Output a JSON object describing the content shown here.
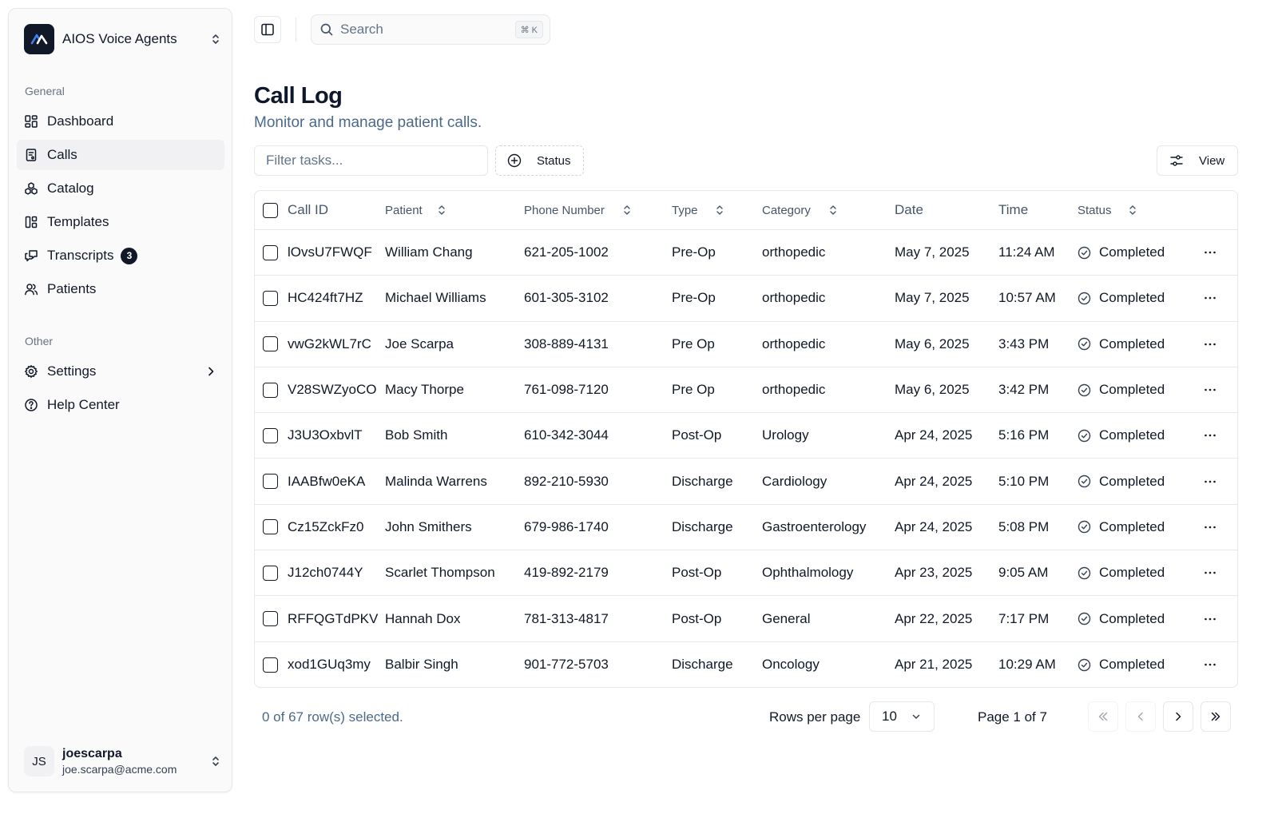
{
  "sidebar": {
    "brand": {
      "name": "AIOS Voice Agents"
    },
    "sections": {
      "general": "General",
      "other": "Other"
    },
    "items": [
      {
        "label": "Dashboard",
        "icon": "dashboard-icon"
      },
      {
        "label": "Calls",
        "icon": "calls-icon",
        "active": true
      },
      {
        "label": "Catalog",
        "icon": "catalog-icon"
      },
      {
        "label": "Templates",
        "icon": "templates-icon"
      },
      {
        "label": "Transcripts",
        "icon": "transcripts-icon",
        "badge": "3"
      },
      {
        "label": "Patients",
        "icon": "patients-icon"
      }
    ],
    "other_items": [
      {
        "label": "Settings",
        "icon": "gear-icon"
      },
      {
        "label": "Help Center",
        "icon": "help-icon"
      }
    ],
    "user": {
      "initials": "JS",
      "name": "joescarpa",
      "email": "joe.scarpa@acme.com"
    }
  },
  "topbar": {
    "search_label": "Search",
    "shortcut": "⌘ K"
  },
  "page": {
    "title": "Call Log",
    "subtitle": "Monitor and manage patient calls."
  },
  "toolbar": {
    "filter_placeholder": "Filter tasks...",
    "status_label": "Status",
    "view_label": "View"
  },
  "table": {
    "columns": {
      "call_id": "Call ID",
      "patient": "Patient",
      "phone": "Phone Number",
      "type": "Type",
      "category": "Category",
      "date": "Date",
      "time": "Time",
      "status": "Status"
    },
    "rows": [
      {
        "id": "lOvsU7FWQF",
        "patient": "William Chang",
        "phone": "621-205-1002",
        "type": "Pre-Op",
        "category": "orthopedic",
        "date": "May 7, 2025",
        "time": "11:24 AM",
        "status": "Completed"
      },
      {
        "id": "HC424ft7HZ",
        "patient": "Michael Williams",
        "phone": "601-305-3102",
        "type": "Pre-Op",
        "category": "orthopedic",
        "date": "May 7, 2025",
        "time": "10:57 AM",
        "status": "Completed"
      },
      {
        "id": "vwG2kWL7rC",
        "patient": "Joe Scarpa",
        "phone": "308-889-4131",
        "type": "Pre Op",
        "category": "orthopedic",
        "date": "May 6, 2025",
        "time": "3:43 PM",
        "status": "Completed"
      },
      {
        "id": "V28SWZyoCO",
        "patient": "Macy Thorpe",
        "phone": "761-098-7120",
        "type": "Pre Op",
        "category": "orthopedic",
        "date": "May 6, 2025",
        "time": "3:42 PM",
        "status": "Completed"
      },
      {
        "id": "J3U3OxbvlT",
        "patient": "Bob Smith",
        "phone": "610-342-3044",
        "type": "Post-Op",
        "category": "Urology",
        "date": "Apr 24, 2025",
        "time": "5:16 PM",
        "status": "Completed"
      },
      {
        "id": "IAABfw0eKA",
        "patient": "Malinda Warrens",
        "phone": "892-210-5930",
        "type": "Discharge",
        "category": "Cardiology",
        "date": "Apr 24, 2025",
        "time": "5:10 PM",
        "status": "Completed"
      },
      {
        "id": "Cz15ZckFz0",
        "patient": "John Smithers",
        "phone": "679-986-1740",
        "type": "Discharge",
        "category": "Gastroenterology",
        "date": "Apr 24, 2025",
        "time": "5:08 PM",
        "status": "Completed"
      },
      {
        "id": "J12ch0744Y",
        "patient": "Scarlet Thompson",
        "phone": "419-892-2179",
        "type": "Post-Op",
        "category": "Ophthalmology",
        "date": "Apr 23, 2025",
        "time": "9:05 AM",
        "status": "Completed"
      },
      {
        "id": "RFFQGTdPKV",
        "patient": "Hannah Dox",
        "phone": "781-313-4817",
        "type": "Post-Op",
        "category": "General",
        "date": "Apr 22, 2025",
        "time": "7:17 PM",
        "status": "Completed"
      },
      {
        "id": "xod1GUq3my",
        "patient": "Balbir Singh",
        "phone": "901-772-5703",
        "type": "Discharge",
        "category": "Oncology",
        "date": "Apr 21, 2025",
        "time": "10:29 AM",
        "status": "Completed"
      }
    ]
  },
  "footer": {
    "selected": "0 of 67 row(s) selected.",
    "rows_per_page_label": "Rows per page",
    "rows_per_page_value": "10",
    "page_label": "Page 1 of 7"
  },
  "colors": {
    "accent": "#111827",
    "muted": "#4b6a8a",
    "border": "#e5e7eb"
  }
}
